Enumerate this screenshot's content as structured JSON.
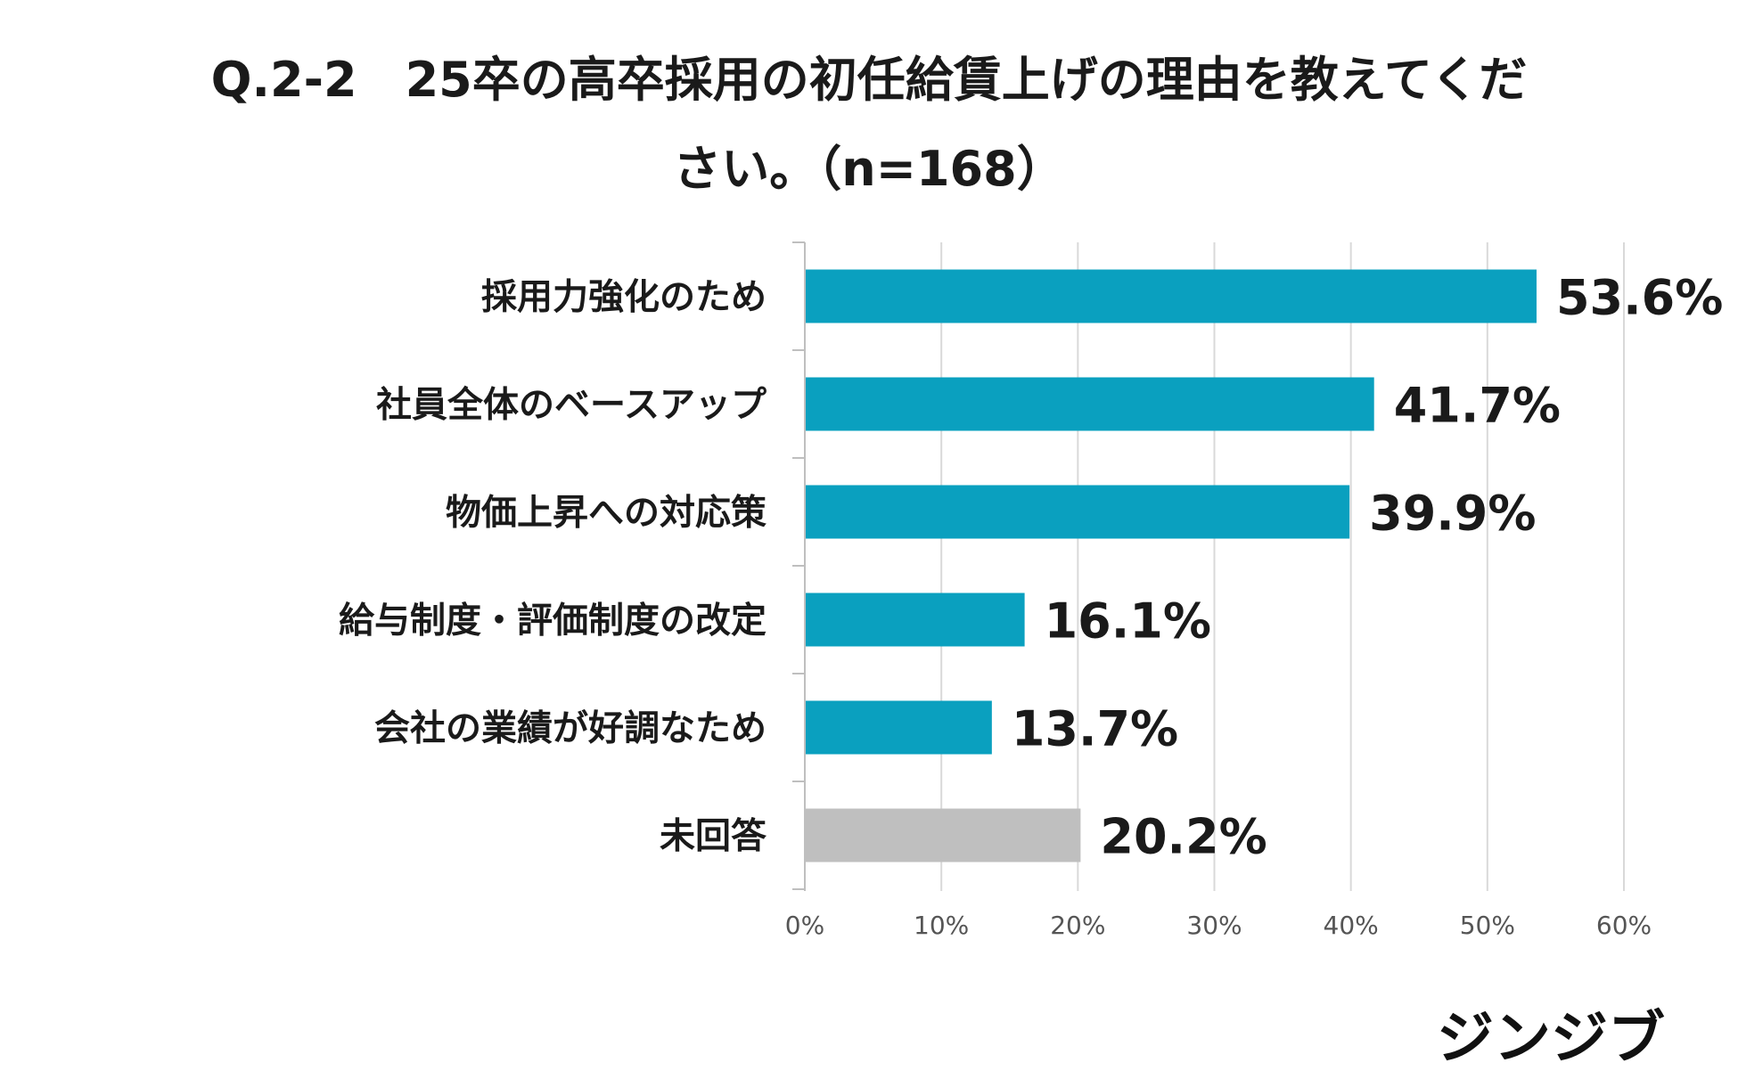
{
  "title": {
    "line1": "Q.2-2　25卒の高卒採用の初任給賃上げの理由を教えてくだ",
    "line2": "さい。（n=168）"
  },
  "brand": {
    "logo_text": "ジンジブ",
    "logo_icon": "jinjibu-logo"
  },
  "colors": {
    "bar": "#0aa0bf",
    "bar_na": "#bfbfbf",
    "grid": "#d9d9d9",
    "axis": "#bfbfbf"
  },
  "chart_data": {
    "type": "bar",
    "orientation": "horizontal",
    "categories": [
      "採用力強化のため",
      "社員全体のベースアップ",
      "物価上昇への対応策",
      "給与制度・評価制度の改定",
      "会社の業績が好調なため",
      "未回答"
    ],
    "values": [
      53.6,
      41.7,
      39.9,
      16.1,
      13.7,
      20.2
    ],
    "value_labels": [
      "53.6%",
      "41.7%",
      "39.9%",
      "16.1%",
      "13.7%",
      "20.2%"
    ],
    "highlight_gray_category": "未回答",
    "xlim": [
      0,
      60
    ],
    "x_ticks": [
      0,
      10,
      20,
      30,
      40,
      50,
      60
    ],
    "x_tick_labels": [
      "0%",
      "10%",
      "20%",
      "30%",
      "40%",
      "50%",
      "60%"
    ],
    "grid": true,
    "legend": "none"
  }
}
